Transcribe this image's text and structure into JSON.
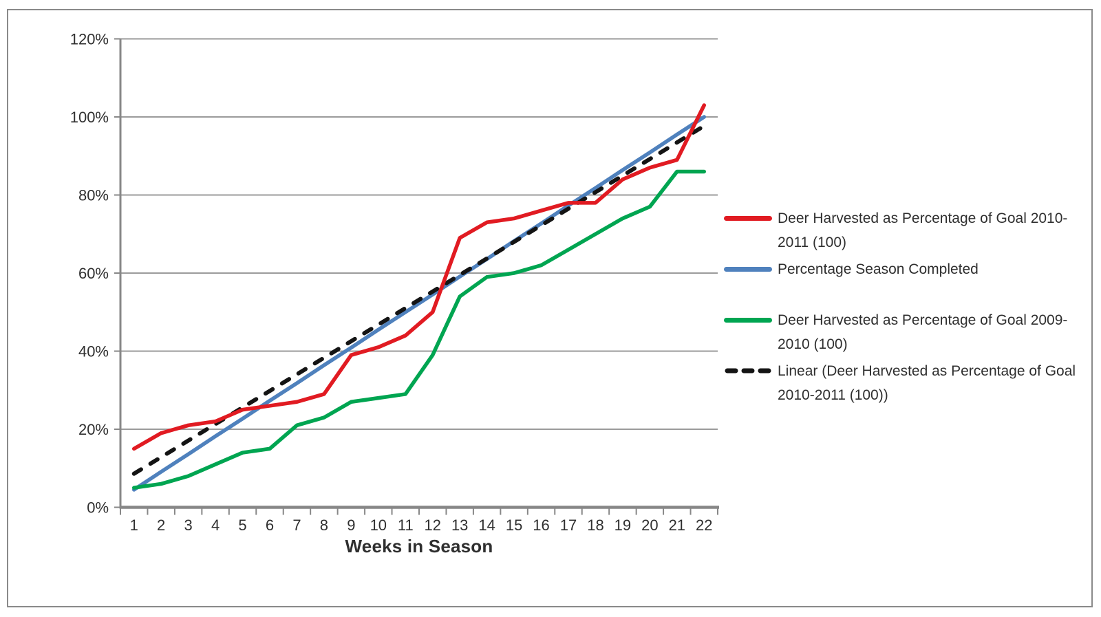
{
  "frame": {
    "border_color": "#8a8a8a"
  },
  "chart_data": {
    "type": "line",
    "title": "",
    "xlabel": "Weeks in Season",
    "ylabel": "",
    "x": [
      1,
      2,
      3,
      4,
      5,
      6,
      7,
      8,
      9,
      10,
      11,
      12,
      13,
      14,
      15,
      16,
      17,
      18,
      19,
      20,
      21,
      22
    ],
    "ylim": [
      0,
      120
    ],
    "yticks": [
      {
        "value": 0,
        "label": "0%"
      },
      {
        "value": 20,
        "label": "20%"
      },
      {
        "value": 40,
        "label": "40%"
      },
      {
        "value": 60,
        "label": "60%"
      },
      {
        "value": 80,
        "label": "80%"
      },
      {
        "value": 100,
        "label": "100%"
      },
      {
        "value": 120,
        "label": "120%"
      }
    ],
    "grid": true,
    "legend_position": "right",
    "colors": {
      "red": "#e11b22",
      "blue": "#4f81bd",
      "green": "#00a551",
      "black": "#141414",
      "gridline": "#9b9b9b",
      "axis": "#878787"
    },
    "series": [
      {
        "name": "Deer Harvested as Percentage of Goal 2010-2011 (100)",
        "color": "#e11b22",
        "style": "solid",
        "values": [
          15,
          19,
          21,
          22,
          25,
          26,
          27,
          29,
          39,
          41,
          44,
          50,
          69,
          73,
          74,
          76,
          78,
          78,
          84,
          87,
          89,
          103
        ]
      },
      {
        "name": "Percentage Season Completed",
        "color": "#4f81bd",
        "style": "solid",
        "values": [
          4.5,
          9.1,
          13.6,
          18.2,
          22.7,
          27.3,
          31.8,
          36.4,
          40.9,
          45.5,
          50,
          54.5,
          59.1,
          63.6,
          68.2,
          72.7,
          77.3,
          81.8,
          86.4,
          90.9,
          95.5,
          100
        ]
      },
      {
        "name": "Deer Harvested as Percentage of Goal 2009-2010 (100)",
        "color": "#00a551",
        "style": "solid",
        "values": [
          5,
          6,
          8,
          11,
          14,
          15,
          21,
          23,
          27,
          28,
          29,
          39,
          54,
          59,
          60,
          62,
          66,
          70,
          74,
          77,
          86,
          86
        ]
      },
      {
        "name": "Linear (Deer Harvested as Percentage of Goal 2010-2011 (100))",
        "color": "#141414",
        "style": "dashed",
        "trend": true,
        "x": [
          1,
          22
        ],
        "values": [
          8.6,
          97.7
        ]
      }
    ]
  }
}
